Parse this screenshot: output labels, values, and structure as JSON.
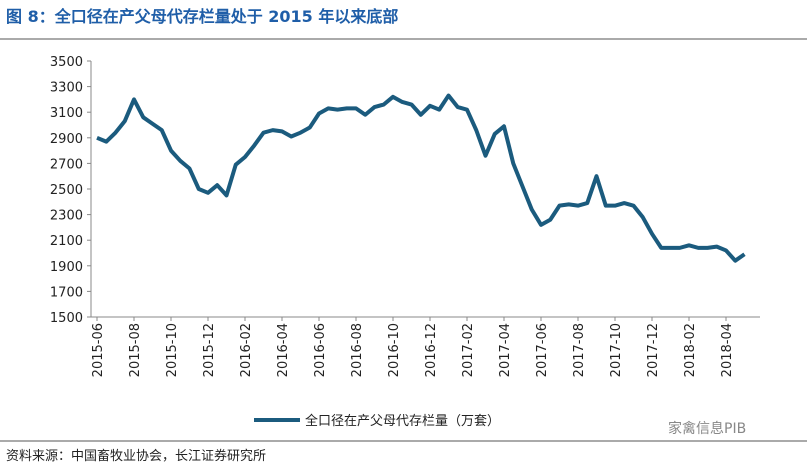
{
  "chart_data": {
    "type": "line",
    "title": "图 8：全口径在产父母代存栏量处于 2015 年以来底部",
    "categories": [
      "2015-06",
      null,
      null,
      null,
      "2015-08",
      null,
      null,
      null,
      "2015-10",
      null,
      null,
      null,
      "2015-12",
      null,
      null,
      null,
      "2016-02",
      null,
      null,
      null,
      "2016-04",
      null,
      null,
      null,
      "2016-06",
      null,
      null,
      null,
      "2016-08",
      null,
      null,
      null,
      "2016-10",
      null,
      null,
      null,
      "2016-12",
      null,
      null,
      null,
      "2017-02",
      null,
      null,
      null,
      "2017-04",
      null,
      null,
      null,
      "2017-06",
      null,
      null,
      null,
      "2017-08",
      null,
      null,
      null,
      "2017-10",
      null,
      null,
      null,
      "2017-12",
      null,
      null,
      null,
      "2018-02",
      null,
      null,
      null,
      "2018-04",
      null,
      null
    ],
    "series": [
      {
        "name": "全口径在产父母代存栏量（万套）",
        "color": "#1b5b7e",
        "values": [
          2900,
          2870,
          2940,
          3030,
          3200,
          3060,
          3010,
          2960,
          2800,
          2720,
          2660,
          2500,
          2470,
          2530,
          2450,
          2690,
          2750,
          2840,
          2940,
          2960,
          2950,
          2910,
          2940,
          2980,
          3090,
          3130,
          3120,
          3130,
          3130,
          3080,
          3140,
          3160,
          3220,
          3180,
          3160,
          3080,
          3150,
          3120,
          3230,
          3140,
          3120,
          2960,
          2760,
          2930,
          2990,
          2700,
          2520,
          2340,
          2220,
          2260,
          2370,
          2380,
          2370,
          2390,
          2600,
          2370,
          2370,
          2390,
          2370,
          2280,
          2150,
          2040,
          2040,
          2040,
          2060,
          2040,
          2040,
          2050,
          2020,
          1940,
          1990
        ]
      }
    ],
    "ylim": [
      1500,
      3500
    ],
    "yticks": [
      1500,
      1700,
      1900,
      2100,
      2300,
      2500,
      2700,
      2900,
      3100,
      3300,
      3500
    ],
    "legend": "bottom",
    "source": "资料来源：中国畜牧业协会，长江证券研究所",
    "watermark": "家禽信息PIB"
  }
}
